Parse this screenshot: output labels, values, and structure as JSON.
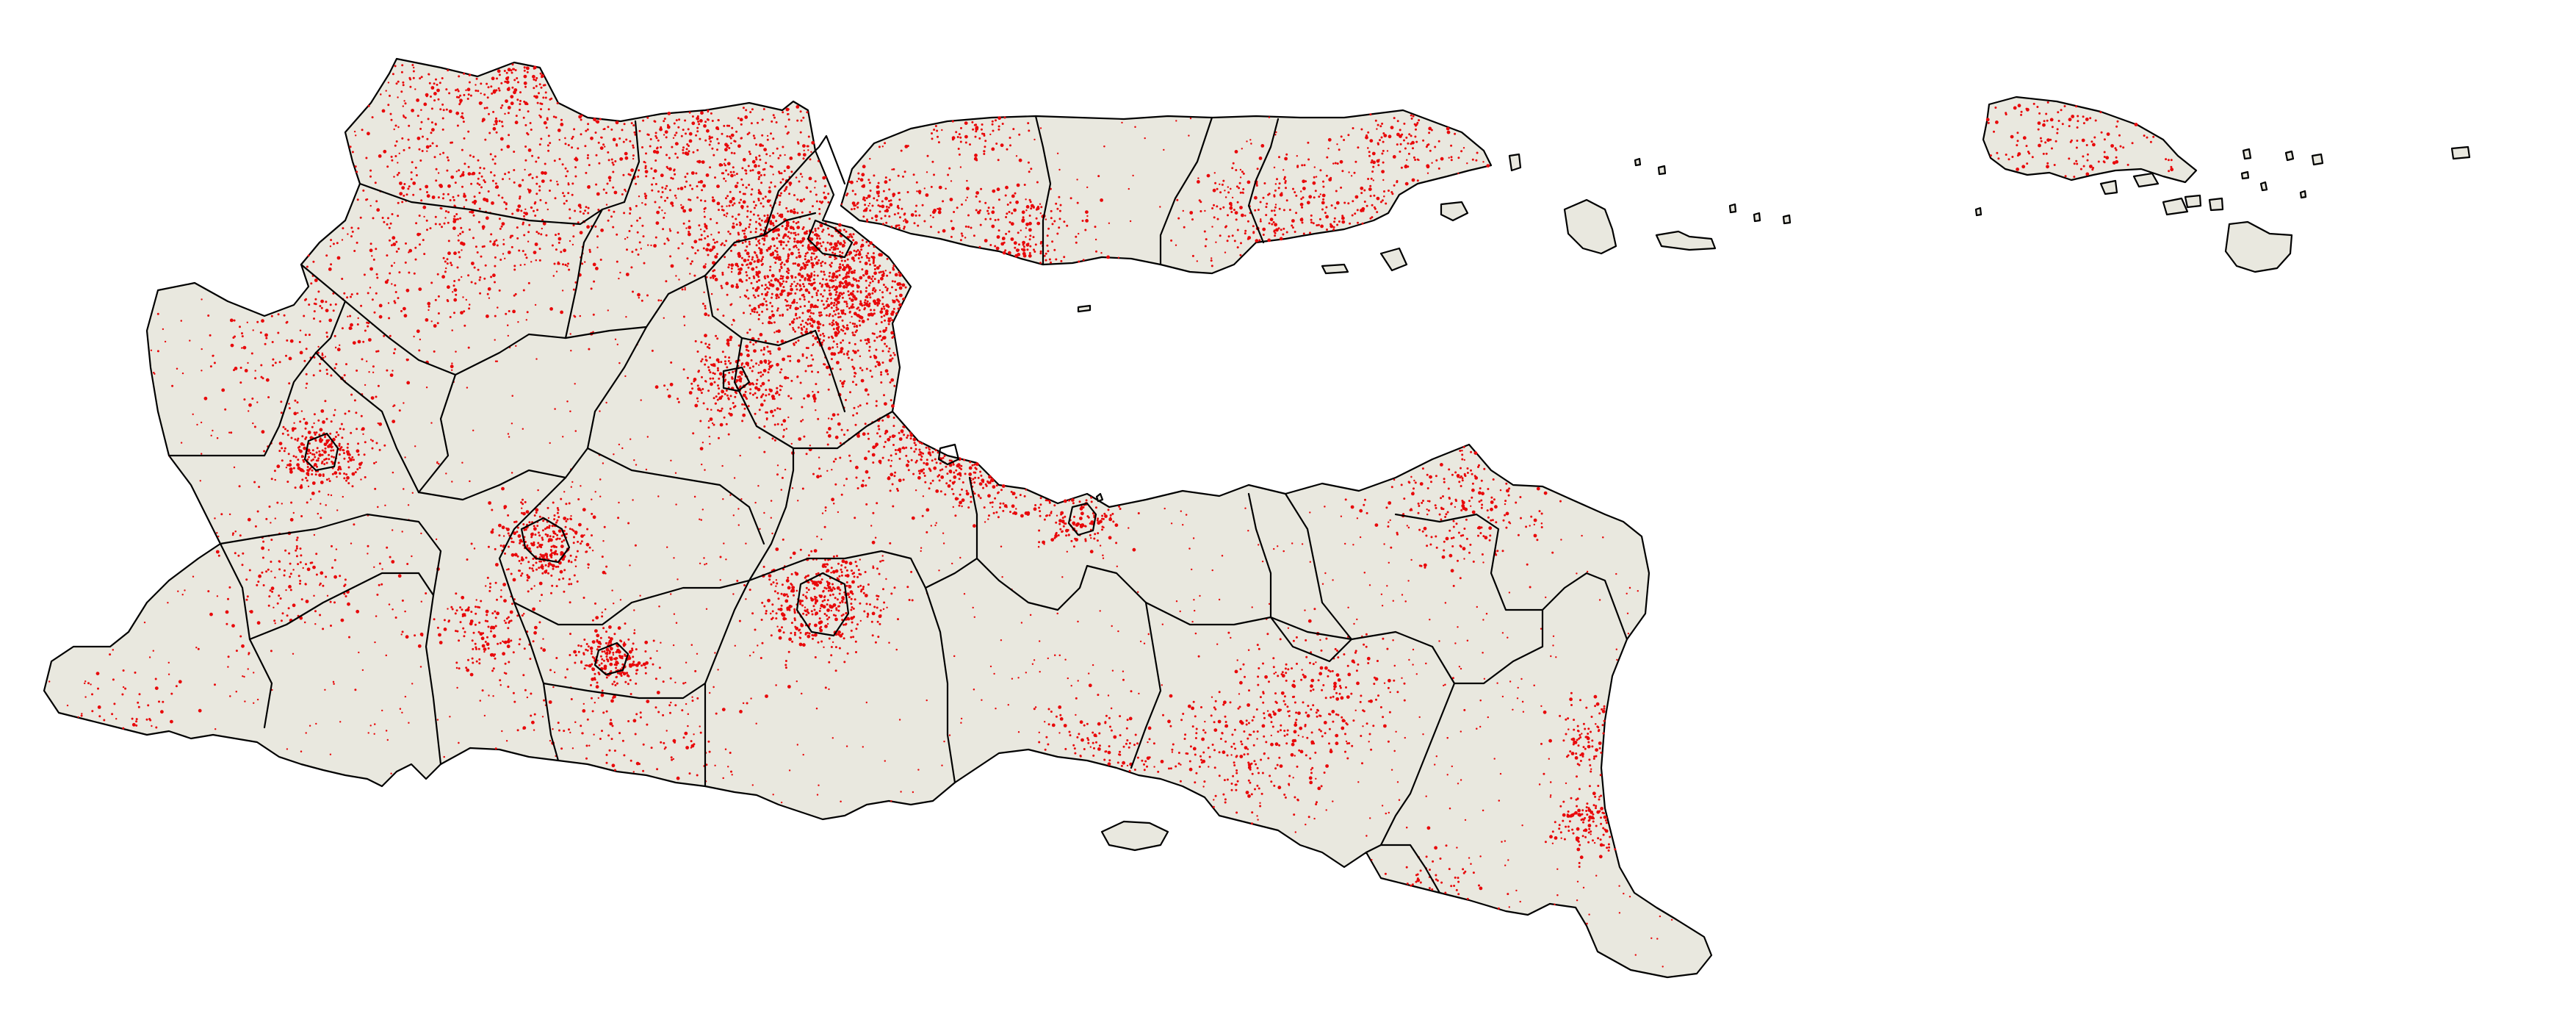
{
  "map": {
    "colors": {
      "background": "#ffffff",
      "land": "#e9e8df",
      "boundary": "#000000",
      "settlement": "#e8090b"
    },
    "layers": [
      "mainland",
      "madura-island",
      "small-islands",
      "eastern-islands",
      "regency-boundaries",
      "settlement-points"
    ]
  }
}
